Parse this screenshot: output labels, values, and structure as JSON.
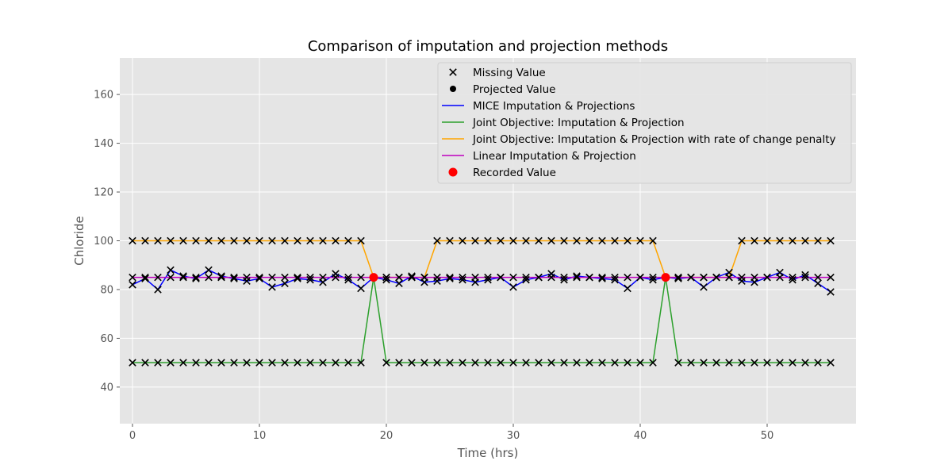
{
  "chart_data": {
    "type": "line",
    "title": "Comparison of imputation and projection methods",
    "xlabel": "Time (hrs)",
    "ylabel": "Chloride",
    "xlim": [
      -1,
      57
    ],
    "ylim": [
      25,
      175
    ],
    "xticks": [
      0,
      10,
      20,
      30,
      40,
      50
    ],
    "yticks": [
      40,
      60,
      80,
      100,
      120,
      140,
      160
    ],
    "grid": true,
    "legend_position": "top-right",
    "x": [
      0,
      1,
      2,
      3,
      4,
      5,
      6,
      7,
      8,
      9,
      10,
      11,
      12,
      13,
      14,
      15,
      16,
      17,
      18,
      19,
      20,
      21,
      22,
      23,
      24,
      25,
      26,
      27,
      28,
      29,
      30,
      31,
      32,
      33,
      34,
      35,
      36,
      37,
      38,
      39,
      40,
      41,
      42,
      43,
      44,
      45,
      46,
      47,
      48,
      49,
      50,
      51,
      52,
      53,
      54,
      55
    ],
    "recorded": [
      {
        "x": 19,
        "y": 85
      },
      {
        "x": 42,
        "y": 85
      }
    ],
    "series": [
      {
        "name": "MICE Imputation & Projections",
        "color": "#0000ff",
        "values": [
          82,
          84.5,
          80,
          88,
          85.5,
          84.5,
          88,
          85.5,
          84.5,
          83.5,
          84.5,
          81,
          82.5,
          84.5,
          84,
          83,
          86.5,
          84,
          80.5,
          85,
          84,
          82.5,
          85.5,
          83,
          83.5,
          84.5,
          84,
          83,
          84,
          85,
          81,
          84,
          85,
          86.5,
          84,
          85.5,
          85,
          84.5,
          84,
          80.5,
          85,
          84,
          85,
          84.5,
          85,
          81,
          85,
          87,
          83.5,
          83,
          85,
          87,
          84,
          86,
          82.5,
          79
        ]
      },
      {
        "name": "Joint Objective: Imputation & Projection",
        "color": "#2ca02c",
        "values": [
          50,
          50,
          50,
          50,
          50,
          50,
          50,
          50,
          50,
          50,
          50,
          50,
          50,
          50,
          50,
          50,
          50,
          50,
          50,
          85,
          50,
          50,
          50,
          50,
          50,
          50,
          50,
          50,
          50,
          50,
          50,
          50,
          50,
          50,
          50,
          50,
          50,
          50,
          50,
          50,
          50,
          50,
          85,
          50,
          50,
          50,
          50,
          50,
          50,
          50,
          50,
          50,
          50,
          50,
          50,
          50
        ]
      },
      {
        "name": "Joint Objective: Imputation & Projection with rate of change penalty",
        "color": "#ffa500",
        "values": [
          100,
          100,
          100,
          100,
          100,
          100,
          100,
          100,
          100,
          100,
          100,
          100,
          100,
          100,
          100,
          100,
          100,
          100,
          100,
          85,
          85,
          85,
          85,
          85,
          100,
          100,
          100,
          100,
          100,
          100,
          100,
          100,
          100,
          100,
          100,
          100,
          100,
          100,
          100,
          100,
          100,
          100,
          85,
          85,
          85,
          85,
          85,
          85,
          100,
          100,
          100,
          100,
          100,
          100,
          100,
          100
        ]
      },
      {
        "name": "Linear Imputation & Projection",
        "color": "#bf00bf",
        "values": [
          85,
          85,
          85,
          85,
          85,
          85,
          85,
          85,
          85,
          85,
          85,
          85,
          85,
          85,
          85,
          85,
          85,
          85,
          85,
          85,
          85,
          85,
          85,
          85,
          85,
          85,
          85,
          85,
          85,
          85,
          85,
          85,
          85,
          85,
          85,
          85,
          85,
          85,
          85,
          85,
          85,
          85,
          85,
          85,
          85,
          85,
          85,
          85,
          85,
          85,
          85,
          85,
          85,
          85,
          85,
          85
        ]
      }
    ],
    "legend": [
      {
        "label": "Missing Value",
        "marker": "x",
        "color": "#000000"
      },
      {
        "label": "Projected Value",
        "marker": "dot",
        "color": "#000000"
      },
      {
        "label": "MICE Imputation & Projections",
        "marker": "line",
        "color": "#0000ff"
      },
      {
        "label": "Joint Objective: Imputation & Projection",
        "marker": "line",
        "color": "#2ca02c"
      },
      {
        "label": "Joint Objective: Imputation & Projection with rate of change penalty",
        "marker": "line",
        "color": "#ffa500"
      },
      {
        "label": "Linear Imputation & Projection",
        "marker": "line",
        "color": "#bf00bf"
      },
      {
        "label": "Recorded Value",
        "marker": "bigdot",
        "color": "#ff0000"
      }
    ]
  }
}
